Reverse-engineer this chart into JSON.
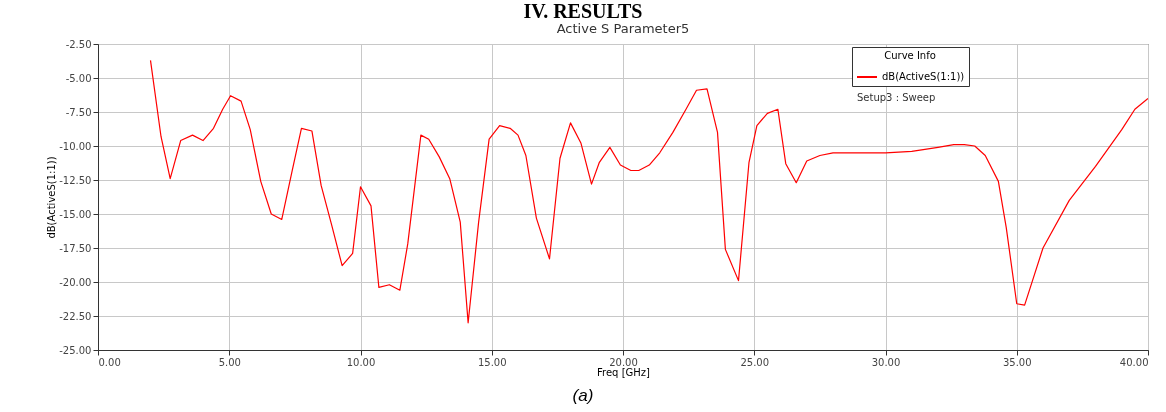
{
  "chart_data": {
    "type": "line",
    "title": "Active S Parameter5",
    "xlabel": "Freq [GHz]",
    "ylabel": "dB(ActiveS(1:1))",
    "legend_title": "Curve Info",
    "annotations": [
      "IV. RESULTS",
      "Setup3 : Sweep",
      "(a)"
    ],
    "x": [
      2.0,
      2.4,
      2.75,
      3.15,
      3.6,
      4.0,
      4.4,
      4.75,
      5.05,
      5.45,
      5.8,
      6.2,
      6.6,
      7.0,
      7.4,
      7.75,
      8.15,
      8.5,
      8.9,
      9.3,
      9.7,
      10.0,
      10.4,
      10.7,
      11.1,
      11.5,
      11.8,
      12.3,
      12.6,
      13.0,
      13.4,
      13.8,
      14.1,
      14.5,
      14.9,
      15.3,
      15.7,
      16.0,
      16.3,
      16.7,
      17.2,
      17.6,
      18.0,
      18.4,
      18.8,
      19.1,
      19.5,
      19.9,
      20.3,
      20.6,
      21.0,
      21.4,
      21.9,
      22.4,
      22.8,
      23.2,
      23.6,
      23.9,
      24.4,
      24.8,
      25.1,
      25.5,
      25.9,
      26.2,
      26.6,
      27.0,
      27.5,
      28.0,
      29.0,
      30.0,
      31.0,
      32.0,
      32.6,
      33.0,
      33.4,
      33.8,
      34.3,
      34.6,
      35.0,
      35.3,
      36.0,
      37.0,
      38.0,
      39.0,
      39.5,
      40.0
    ],
    "series": [
      {
        "name": "dB(ActiveS(1:1))",
        "color": "#ff0000",
        "values": [
          -3.7,
          -9.3,
          -12.4,
          -9.6,
          -9.2,
          -9.6,
          -8.7,
          -7.3,
          -6.3,
          -6.7,
          -8.8,
          -12.6,
          -15.0,
          -15.4,
          -11.8,
          -8.7,
          -8.9,
          -12.9,
          -15.8,
          -18.8,
          -17.9,
          -13.0,
          -14.4,
          -20.4,
          -20.2,
          -20.6,
          -17.2,
          -9.2,
          -9.5,
          -10.8,
          -12.4,
          -15.6,
          -23.0,
          -15.6,
          -9.5,
          -8.5,
          -8.7,
          -9.2,
          -10.7,
          -15.3,
          -18.3,
          -10.9,
          -8.3,
          -9.8,
          -12.8,
          -11.2,
          -10.1,
          -11.4,
          -11.8,
          -11.8,
          -11.4,
          -10.5,
          -9.0,
          -7.3,
          -5.9,
          -5.8,
          -9.0,
          -17.6,
          -19.9,
          -11.2,
          -8.5,
          -7.6,
          -7.3,
          -11.3,
          -12.7,
          -11.1,
          -10.7,
          -10.5,
          -10.5,
          -10.5,
          -10.4,
          -10.1,
          -9.9,
          -9.9,
          -10.0,
          -10.7,
          -12.6,
          -16.0,
          -21.6,
          -21.7,
          -17.5,
          -14.0,
          -11.5,
          -8.8,
          -7.3,
          -6.5
        ]
      }
    ],
    "xlim": [
      0,
      40
    ],
    "xticks": [
      {
        "value": 0,
        "label": "0.00"
      },
      {
        "value": 5,
        "label": "5.00"
      },
      {
        "value": 10,
        "label": "10.00"
      },
      {
        "value": 15,
        "label": "15.00"
      },
      {
        "value": 20,
        "label": "20.00"
      },
      {
        "value": 25,
        "label": "25.00"
      },
      {
        "value": 30,
        "label": "30.00"
      },
      {
        "value": 35,
        "label": "35.00"
      },
      {
        "value": 40,
        "label": "40.00"
      }
    ],
    "ylim": [
      -25,
      -2.5
    ],
    "yticks": [
      {
        "value": -25,
        "label": "-25.00"
      },
      {
        "value": -22.5,
        "label": "-22.50"
      },
      {
        "value": -20,
        "label": "-20.00"
      },
      {
        "value": -17.5,
        "label": "-17.50"
      },
      {
        "value": -15,
        "label": "-15.00"
      },
      {
        "value": -12.5,
        "label": "-12.50"
      },
      {
        "value": -10,
        "label": "-10.00"
      },
      {
        "value": -7.5,
        "label": "-7.50"
      },
      {
        "value": -5,
        "label": "-5.00"
      },
      {
        "value": -2.5,
        "label": "-2.50"
      }
    ],
    "grid": true,
    "legend": "top right",
    "line_style": "solid"
  }
}
